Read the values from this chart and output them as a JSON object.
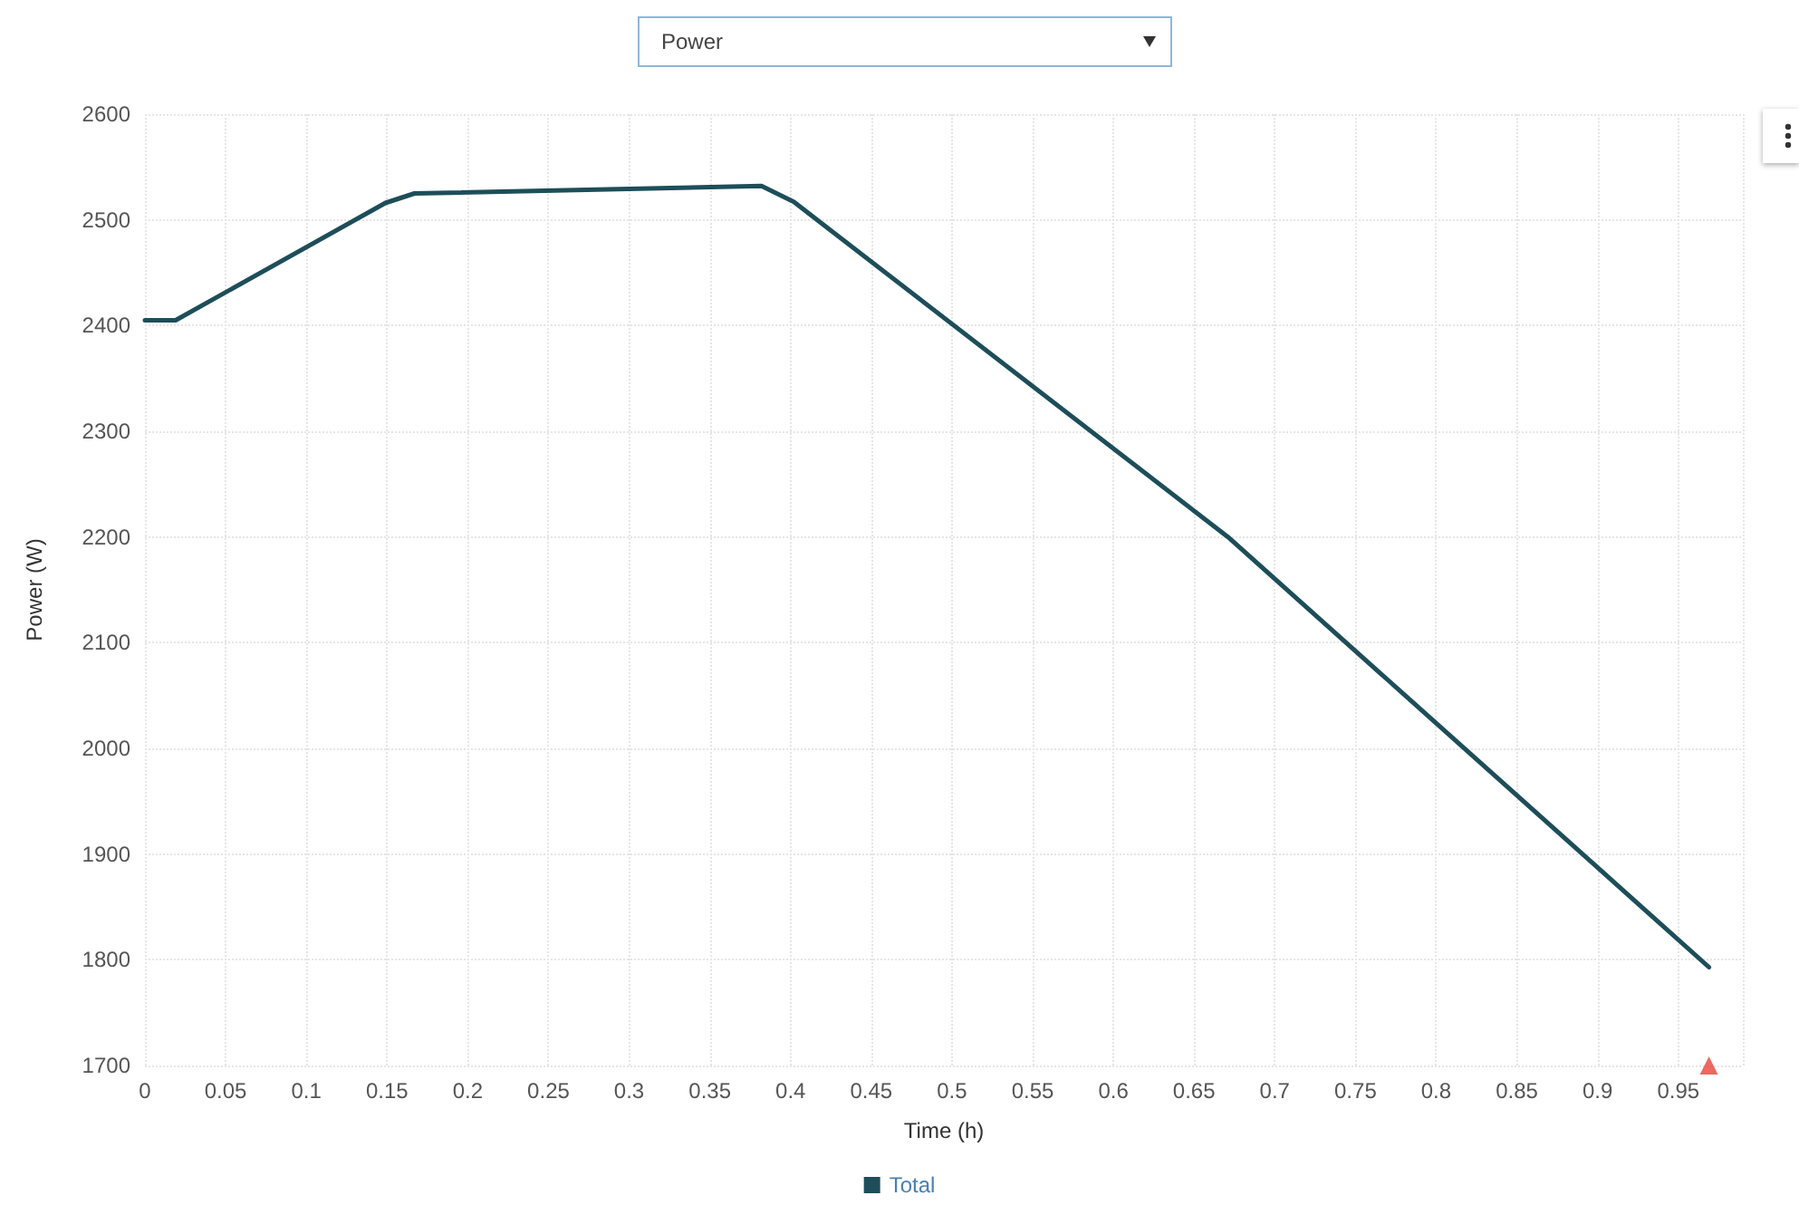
{
  "chart_data": {
    "type": "line",
    "title": "Power",
    "xlabel": "Time (h)",
    "ylabel": "Power (W)",
    "xlim": [
      0,
      0.99
    ],
    "xticks": [
      0,
      0.05,
      0.1,
      0.15,
      0.2,
      0.25,
      0.3,
      0.35,
      0.4,
      0.45,
      0.5,
      0.55,
      0.6,
      0.65,
      0.7,
      0.75,
      0.8,
      0.85,
      0.9,
      0.95
    ],
    "ylim": [
      1700,
      2600
    ],
    "yticks": [
      1700,
      1800,
      1900,
      2000,
      2100,
      2200,
      2300,
      2400,
      2500,
      2600
    ],
    "grid": true,
    "legend": "bottom",
    "marker": "none",
    "line_style": "solid",
    "series": [
      {
        "type": "scatter",
        "marker": "triangle",
        "color": "#e8443a",
        "x": [
          0.969
        ],
        "values": [
          1700
        ]
      },
      {
        "name": "Total",
        "color": "#1d4e59",
        "x": [
          0,
          0.019,
          0.149,
          0.167,
          0.382,
          0.402,
          0.671,
          0.969
        ],
        "values": [
          2405,
          2405,
          2516,
          2525,
          2532,
          2517,
          2200,
          1793
        ]
      }
    ]
  }
}
